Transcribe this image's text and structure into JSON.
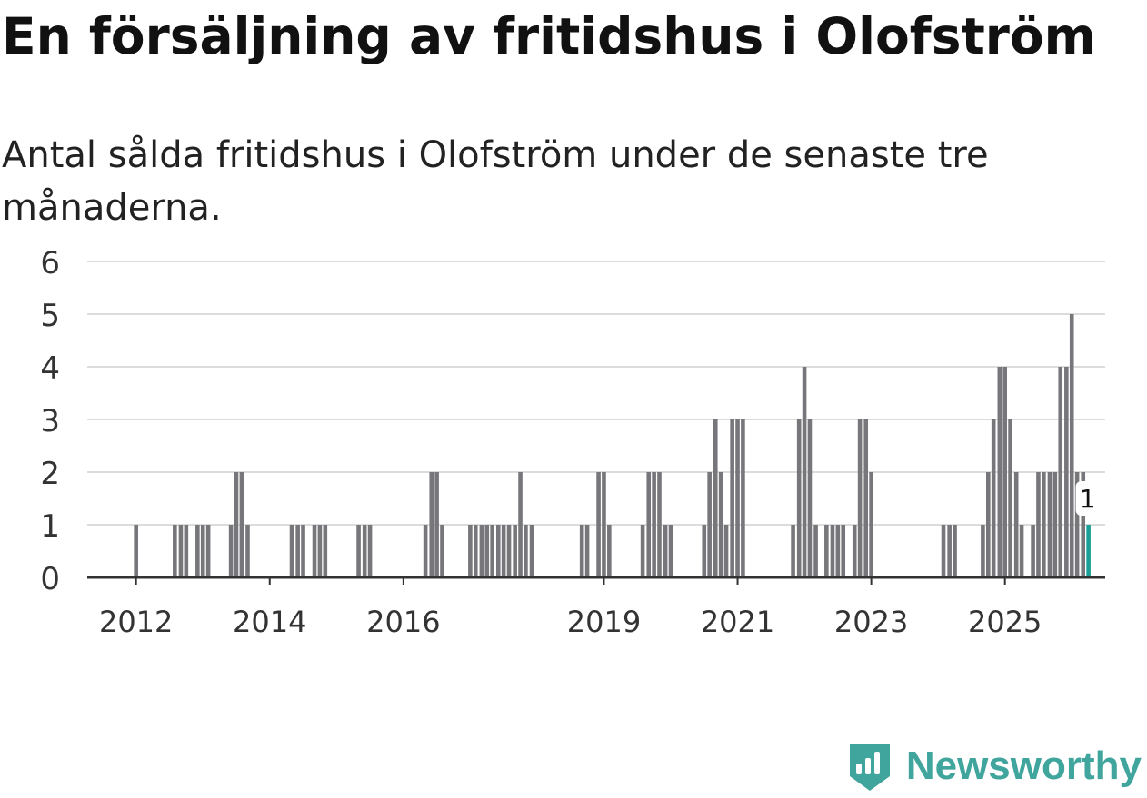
{
  "title": "En försäljning av fritidshus i Olofström",
  "subtitle": "Antal sålda fritidshus i Olofström under de senaste tre månaderna.",
  "brand": {
    "name": "Newsworthy",
    "icon": "newsworthy-logo-icon"
  },
  "colors": {
    "bar": "#77767a",
    "highlight": "#1a9e96",
    "grid": "#dcdcdc",
    "axis": "#333333",
    "brand": "#3fa59d"
  },
  "chart_data": {
    "type": "bar",
    "title": "En försäljning av fritidshus i Olofström",
    "xlabel": "",
    "ylabel": "",
    "ylim": [
      0,
      6
    ],
    "yticks": [
      "0",
      "1",
      "2",
      "3",
      "4",
      "5",
      "6"
    ],
    "xticks": [
      {
        "label": "2012",
        "x": 2012.0
      },
      {
        "label": "2014",
        "x": 2014.0
      },
      {
        "label": "2016",
        "x": 2016.0
      },
      {
        "label": "2019",
        "x": 2019.0
      },
      {
        "label": "2021",
        "x": 2021.0
      },
      {
        "label": "2023",
        "x": 2023.0
      },
      {
        "label": "2025",
        "x": 2025.0
      }
    ],
    "x_range": [
      2011.27,
      2026.5
    ],
    "grid": true,
    "series": [
      {
        "name": "Antal sålda fritidshus",
        "points": [
          [
            2012.0,
            1
          ],
          [
            2012.58,
            1
          ],
          [
            2012.67,
            1
          ],
          [
            2012.75,
            1
          ],
          [
            2012.92,
            1
          ],
          [
            2013.0,
            1
          ],
          [
            2013.08,
            1
          ],
          [
            2013.42,
            1
          ],
          [
            2013.5,
            2
          ],
          [
            2013.58,
            2
          ],
          [
            2013.67,
            1
          ],
          [
            2014.33,
            1
          ],
          [
            2014.42,
            1
          ],
          [
            2014.5,
            1
          ],
          [
            2014.67,
            1
          ],
          [
            2014.75,
            1
          ],
          [
            2014.83,
            1
          ],
          [
            2015.33,
            1
          ],
          [
            2015.42,
            1
          ],
          [
            2015.5,
            1
          ],
          [
            2016.33,
            1
          ],
          [
            2016.42,
            2
          ],
          [
            2016.5,
            2
          ],
          [
            2016.58,
            1
          ],
          [
            2017.0,
            1
          ],
          [
            2017.08,
            1
          ],
          [
            2017.17,
            1
          ],
          [
            2017.25,
            1
          ],
          [
            2017.33,
            1
          ],
          [
            2017.42,
            1
          ],
          [
            2017.5,
            1
          ],
          [
            2017.58,
            1
          ],
          [
            2017.67,
            1
          ],
          [
            2017.75,
            2
          ],
          [
            2017.83,
            1
          ],
          [
            2017.92,
            1
          ],
          [
            2018.67,
            1
          ],
          [
            2018.75,
            1
          ],
          [
            2018.92,
            2
          ],
          [
            2019.0,
            2
          ],
          [
            2019.08,
            1
          ],
          [
            2019.58,
            1
          ],
          [
            2019.67,
            2
          ],
          [
            2019.75,
            2
          ],
          [
            2019.83,
            2
          ],
          [
            2019.92,
            1
          ],
          [
            2020.0,
            1
          ],
          [
            2020.5,
            1
          ],
          [
            2020.58,
            2
          ],
          [
            2020.67,
            3
          ],
          [
            2020.75,
            2
          ],
          [
            2020.83,
            1
          ],
          [
            2020.92,
            3
          ],
          [
            2021.0,
            3
          ],
          [
            2021.08,
            3
          ],
          [
            2021.83,
            1
          ],
          [
            2021.92,
            3
          ],
          [
            2022.0,
            4
          ],
          [
            2022.08,
            3
          ],
          [
            2022.17,
            1
          ],
          [
            2022.33,
            1
          ],
          [
            2022.42,
            1
          ],
          [
            2022.5,
            1
          ],
          [
            2022.58,
            1
          ],
          [
            2022.75,
            1
          ],
          [
            2022.83,
            3
          ],
          [
            2022.92,
            3
          ],
          [
            2023.0,
            2
          ],
          [
            2024.08,
            1
          ],
          [
            2024.17,
            1
          ],
          [
            2024.25,
            1
          ],
          [
            2024.67,
            1
          ],
          [
            2024.75,
            2
          ],
          [
            2024.83,
            3
          ],
          [
            2024.92,
            4
          ],
          [
            2025.0,
            4
          ],
          [
            2025.08,
            3
          ],
          [
            2025.17,
            2
          ],
          [
            2025.25,
            1
          ],
          [
            2025.42,
            1
          ],
          [
            2025.5,
            2
          ],
          [
            2025.58,
            2
          ],
          [
            2025.67,
            2
          ],
          [
            2025.75,
            2
          ],
          [
            2025.83,
            4
          ],
          [
            2025.92,
            4
          ],
          [
            2026.0,
            5
          ],
          [
            2026.08,
            2
          ],
          [
            2026.17,
            2
          ]
        ]
      }
    ],
    "highlight": {
      "x": 2026.25,
      "value": 1,
      "label": "1"
    }
  }
}
